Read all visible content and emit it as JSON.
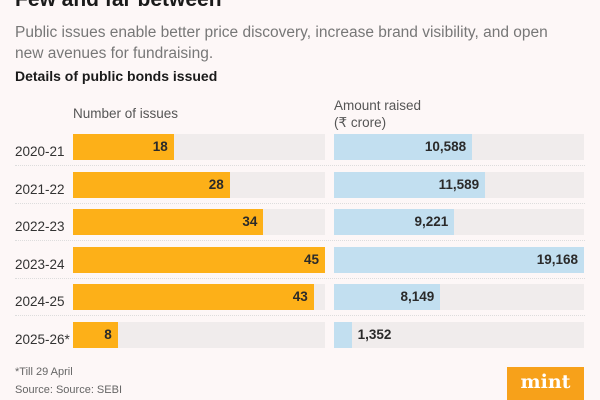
{
  "title": "Few and far between",
  "subtitle": "Public issues enable better price discovery, increase brand visibility, and open new avenues for fundraising.",
  "chart_data": {
    "type": "bar",
    "title": "Details of public bonds issued",
    "categories": [
      "2020-21",
      "2021-22",
      "2022-23",
      "2023-24",
      "2024-25",
      "2025-26*"
    ],
    "series": [
      {
        "name": "Number of issues",
        "values": [
          18,
          28,
          34,
          45,
          43,
          8
        ],
        "labels": [
          "18",
          "28",
          "34",
          "45",
          "43",
          "8"
        ],
        "color": "#fdb018",
        "max": 45
      },
      {
        "name": "Amount raised\n(₹ crore)",
        "values": [
          10588,
          11589,
          9221,
          19168,
          8149,
          1352
        ],
        "labels": [
          "10,588",
          "11,589",
          "9,221",
          "19,168",
          "8,149",
          "1,352"
        ],
        "color": "#c2dff0",
        "max": 19168
      }
    ],
    "col_heads": [
      "Number of issues",
      "Amount raised",
      "(₹ crore)"
    ],
    "orientation": "horizontal"
  },
  "footnote": "*Till 29 April",
  "source": "Source: Source: SEBI",
  "logo": "mint"
}
